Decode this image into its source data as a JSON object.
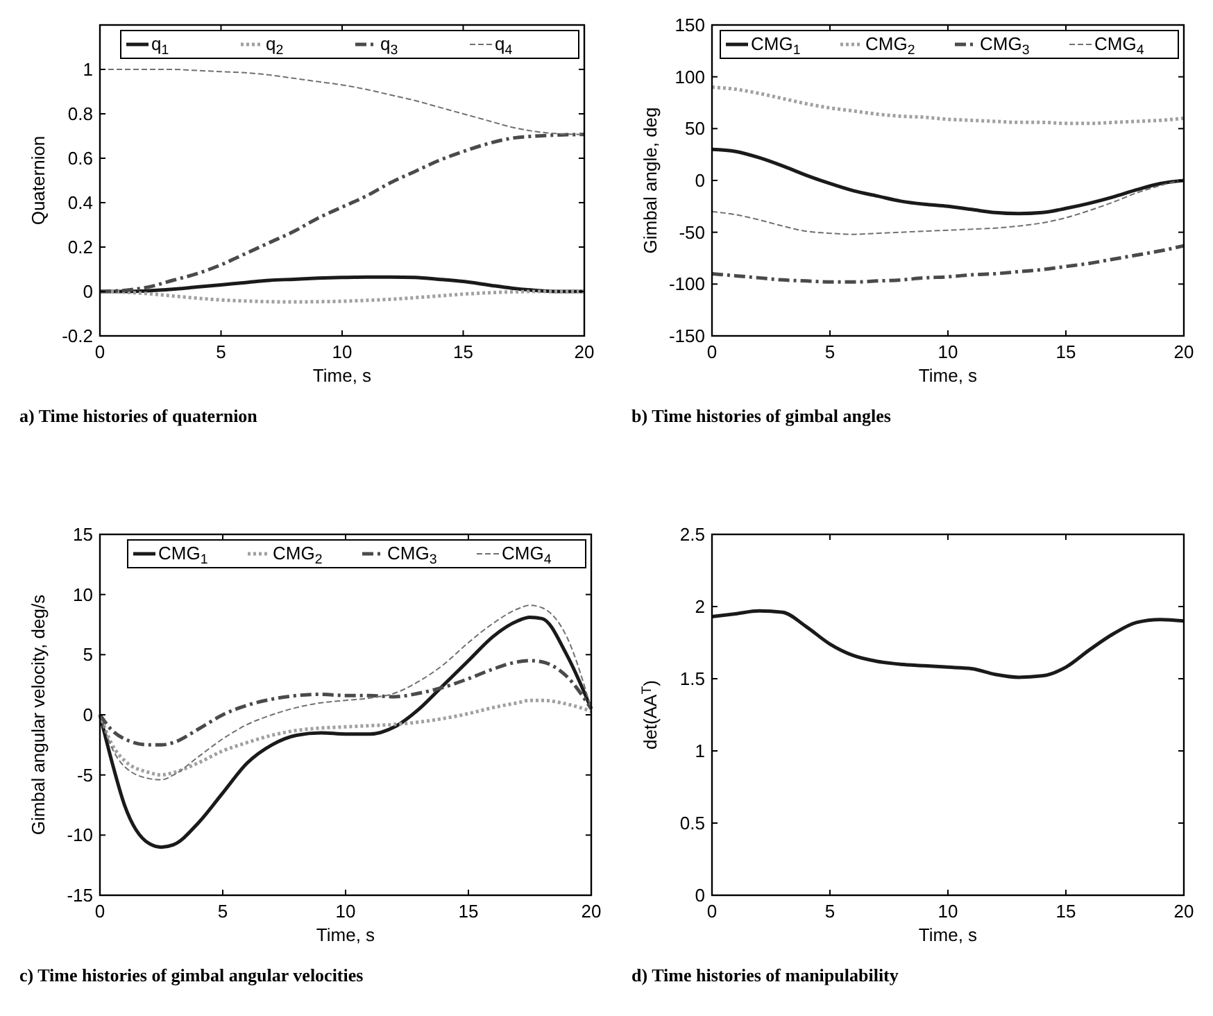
{
  "chart_data": [
    {
      "type": "line",
      "title": "a) Time histories of quaternion",
      "xlabel": "Time, s",
      "ylabel": "Quaternion",
      "xlim": [
        0,
        20
      ],
      "xticks": [
        0,
        5,
        10,
        15,
        20
      ],
      "ylim": [
        -0.2,
        1.2
      ],
      "yticks": [
        -0.2,
        0,
        0.2,
        0.4,
        0.6,
        0.8,
        1
      ],
      "legend": "top right",
      "x": [
        0,
        1,
        2,
        3,
        4,
        5,
        6,
        7,
        8,
        9,
        10,
        11,
        12,
        13,
        14,
        15,
        16,
        17,
        18,
        19,
        20
      ],
      "series": [
        {
          "name": "q$_{1}$",
          "color": "#1a1a1a",
          "line_style": "solid",
          "values": [
            0,
            0,
            0.003,
            0.01,
            0.02,
            0.03,
            0.04,
            0.05,
            0.055,
            0.06,
            0.063,
            0.065,
            0.065,
            0.063,
            0.055,
            0.045,
            0.03,
            0.015,
            0.005,
            0,
            0
          ]
        },
        {
          "name": "q$_{2}$",
          "color": "#a0a0a0",
          "line_style": "dotted",
          "values": [
            0,
            -0.003,
            -0.01,
            -0.02,
            -0.03,
            -0.038,
            -0.043,
            -0.046,
            -0.047,
            -0.046,
            -0.044,
            -0.04,
            -0.035,
            -0.028,
            -0.02,
            -0.012,
            -0.006,
            -0.002,
            0,
            0,
            0
          ]
        },
        {
          "name": "q$_{3}$",
          "color": "#4a4a4a",
          "line_style": "dashdot",
          "values": [
            0,
            0.005,
            0.02,
            0.05,
            0.08,
            0.12,
            0.17,
            0.22,
            0.27,
            0.33,
            0.38,
            0.43,
            0.49,
            0.54,
            0.59,
            0.63,
            0.665,
            0.69,
            0.7,
            0.705,
            0.707
          ]
        },
        {
          "name": "q$_{4}$",
          "color": "#707070",
          "line_style": "dashed",
          "values": [
            1,
            1,
            1,
            1,
            0.995,
            0.99,
            0.985,
            0.975,
            0.96,
            0.945,
            0.93,
            0.91,
            0.885,
            0.86,
            0.83,
            0.8,
            0.77,
            0.74,
            0.72,
            0.71,
            0.707
          ]
        }
      ]
    },
    {
      "type": "line",
      "title": "b) Time histories of gimbal angles",
      "xlabel": "Time, s",
      "ylabel": "Gimbal angle, deg",
      "xlim": [
        0,
        20
      ],
      "xticks": [
        0,
        5,
        10,
        15,
        20
      ],
      "ylim": [
        -150,
        150
      ],
      "yticks": [
        -150,
        -100,
        -50,
        0,
        50,
        100,
        150
      ],
      "legend": "top right",
      "x": [
        0,
        1,
        2,
        3,
        4,
        5,
        6,
        7,
        8,
        9,
        10,
        11,
        12,
        13,
        14,
        15,
        16,
        17,
        18,
        19,
        20
      ],
      "series": [
        {
          "name": "CMG$_{1}$",
          "color": "#1a1a1a",
          "line_style": "solid",
          "values": [
            30,
            28,
            22,
            14,
            5,
            -3,
            -10,
            -15,
            -20,
            -23,
            -25,
            -28,
            -31,
            -32,
            -31,
            -27,
            -22,
            -16,
            -9,
            -3,
            0
          ]
        },
        {
          "name": "CMG$_{2}$",
          "color": "#a0a0a0",
          "line_style": "dotted",
          "values": [
            90,
            88,
            84,
            79,
            74,
            70,
            67,
            64,
            62,
            61,
            59,
            58,
            57,
            56,
            56,
            55,
            55,
            56,
            57,
            58,
            60
          ]
        },
        {
          "name": "CMG$_{3}$",
          "color": "#4a4a4a",
          "line_style": "dashdot",
          "values": [
            -90,
            -92,
            -94,
            -96,
            -97,
            -98,
            -98,
            -97,
            -96,
            -94,
            -93,
            -91,
            -90,
            -88,
            -86,
            -83,
            -80,
            -76,
            -72,
            -68,
            -63
          ]
        },
        {
          "name": "CMG$_{4}$",
          "color": "#707070",
          "line_style": "dashed",
          "values": [
            -30,
            -33,
            -38,
            -44,
            -49,
            -51,
            -52,
            -51,
            -50,
            -49,
            -48,
            -47,
            -46,
            -44,
            -41,
            -36,
            -29,
            -21,
            -12,
            -5,
            1
          ]
        }
      ]
    },
    {
      "type": "line",
      "title": "c) Time histories of gimbal angular velocities",
      "xlabel": "Time, s",
      "ylabel": "Gimbal angular velocity, deg/s",
      "xlim": [
        0,
        20
      ],
      "xticks": [
        0,
        5,
        10,
        15,
        20
      ],
      "ylim": [
        -15,
        15
      ],
      "yticks": [
        -15,
        -10,
        -5,
        0,
        5,
        10,
        15
      ],
      "legend": "top right",
      "x": [
        0,
        0.5,
        1,
        2,
        2.5,
        3,
        4,
        5,
        6,
        7,
        8,
        9,
        10,
        11,
        12,
        13,
        14,
        15,
        16,
        17,
        17.5,
        18,
        19,
        20
      ],
      "series": [
        {
          "name": "CMG$_{1}$",
          "color": "#1a1a1a",
          "line_style": "solid",
          "values": [
            0,
            -4,
            -7.5,
            -10.7,
            -11,
            -10.8,
            -9,
            -6.5,
            -4,
            -2.5,
            -1.7,
            -1.5,
            -1.6,
            -1.6,
            -1,
            0.5,
            2.5,
            4.5,
            6.5,
            7.8,
            8.1,
            8,
            5,
            0.5
          ]
        },
        {
          "name": "CMG$_{2}$",
          "color": "#a0a0a0",
          "line_style": "dotted",
          "values": [
            0,
            -2.5,
            -3.8,
            -4.8,
            -5,
            -4.8,
            -4,
            -3,
            -2.3,
            -1.7,
            -1.3,
            -1.1,
            -1,
            -0.9,
            -0.8,
            -0.6,
            -0.3,
            0.1,
            0.6,
            1,
            1.2,
            1.2,
            0.9,
            0.3
          ]
        },
        {
          "name": "CMG$_{3}$",
          "color": "#4a4a4a",
          "line_style": "dashdot",
          "values": [
            0,
            -1.3,
            -2,
            -2.5,
            -2.5,
            -2.3,
            -1.2,
            0,
            0.8,
            1.3,
            1.6,
            1.7,
            1.6,
            1.6,
            1.5,
            1.8,
            2.3,
            3,
            3.8,
            4.4,
            4.5,
            4.4,
            3.2,
            0.5
          ]
        },
        {
          "name": "CMG$_{4}$",
          "color": "#707070",
          "line_style": "dashed",
          "values": [
            0,
            -2.8,
            -4.3,
            -5.3,
            -5.4,
            -5,
            -3.5,
            -2,
            -0.8,
            0,
            0.6,
            1,
            1.2,
            1.4,
            1.8,
            2.8,
            4.2,
            6,
            7.6,
            8.8,
            9.1,
            8.9,
            6.5,
            0.5
          ]
        }
      ]
    },
    {
      "type": "line",
      "title": "d) Time histories of manipulability",
      "xlabel": "Time, s",
      "ylabel": "det(AA$^{T}$)",
      "xlim": [
        0,
        20
      ],
      "xticks": [
        0,
        5,
        10,
        15,
        20
      ],
      "ylim": [
        0,
        2.5
      ],
      "yticks": [
        0,
        0.5,
        1,
        1.5,
        2,
        2.5
      ],
      "x": [
        0,
        1,
        2,
        3,
        4,
        5,
        6,
        7,
        8,
        9,
        10,
        11,
        12,
        13,
        14,
        15,
        16,
        17,
        18,
        19,
        20
      ],
      "series": [
        {
          "color": "#1a1a1a",
          "line_style": "solid",
          "values": [
            1.93,
            1.95,
            1.97,
            1.96,
            1.86,
            1.74,
            1.66,
            1.62,
            1.6,
            1.59,
            1.58,
            1.57,
            1.53,
            1.51,
            1.52,
            1.58,
            1.7,
            1.81,
            1.89,
            1.91,
            1.9
          ]
        }
      ]
    }
  ]
}
